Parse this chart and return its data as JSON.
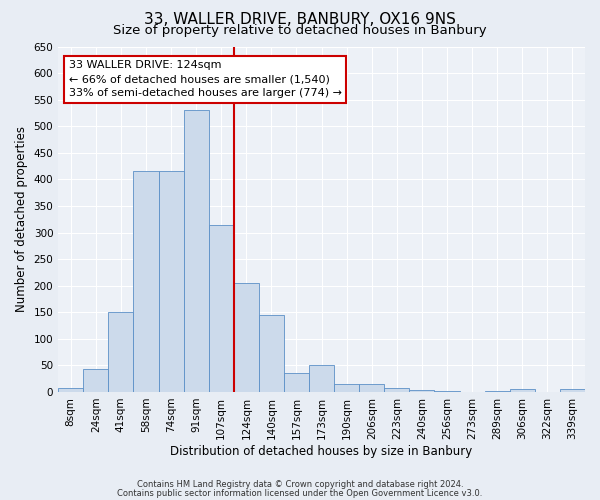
{
  "title": "33, WALLER DRIVE, BANBURY, OX16 9NS",
  "subtitle": "Size of property relative to detached houses in Banbury",
  "xlabel": "Distribution of detached houses by size in Banbury",
  "ylabel": "Number of detached properties",
  "bar_labels": [
    "8sqm",
    "24sqm",
    "41sqm",
    "58sqm",
    "74sqm",
    "91sqm",
    "107sqm",
    "124sqm",
    "140sqm",
    "157sqm",
    "173sqm",
    "190sqm",
    "206sqm",
    "223sqm",
    "240sqm",
    "256sqm",
    "273sqm",
    "289sqm",
    "306sqm",
    "322sqm",
    "339sqm"
  ],
  "bar_values": [
    8,
    44,
    150,
    415,
    415,
    530,
    315,
    205,
    145,
    35,
    50,
    15,
    15,
    8,
    3,
    2,
    0,
    2,
    5,
    0,
    5
  ],
  "bar_color": "#ccdaeb",
  "bar_edge_color": "#5b8fc7",
  "vline_index": 7,
  "vline_color": "#cc0000",
  "ylim": [
    0,
    650
  ],
  "yticks": [
    0,
    50,
    100,
    150,
    200,
    250,
    300,
    350,
    400,
    450,
    500,
    550,
    600,
    650
  ],
  "annotation_title": "33 WALLER DRIVE: 124sqm",
  "annotation_line1": "← 66% of detached houses are smaller (1,540)",
  "annotation_line2": "33% of semi-detached houses are larger (774) →",
  "annotation_box_color": "#ffffff",
  "annotation_box_edge": "#cc0000",
  "footer1": "Contains HM Land Registry data © Crown copyright and database right 2024.",
  "footer2": "Contains public sector information licensed under the Open Government Licence v3.0.",
  "bg_color": "#e8edf4",
  "plot_bg_color": "#edf1f7",
  "title_fontsize": 11,
  "subtitle_fontsize": 9.5,
  "axis_label_fontsize": 8.5,
  "tick_fontsize": 7.5,
  "footer_fontsize": 6.0
}
